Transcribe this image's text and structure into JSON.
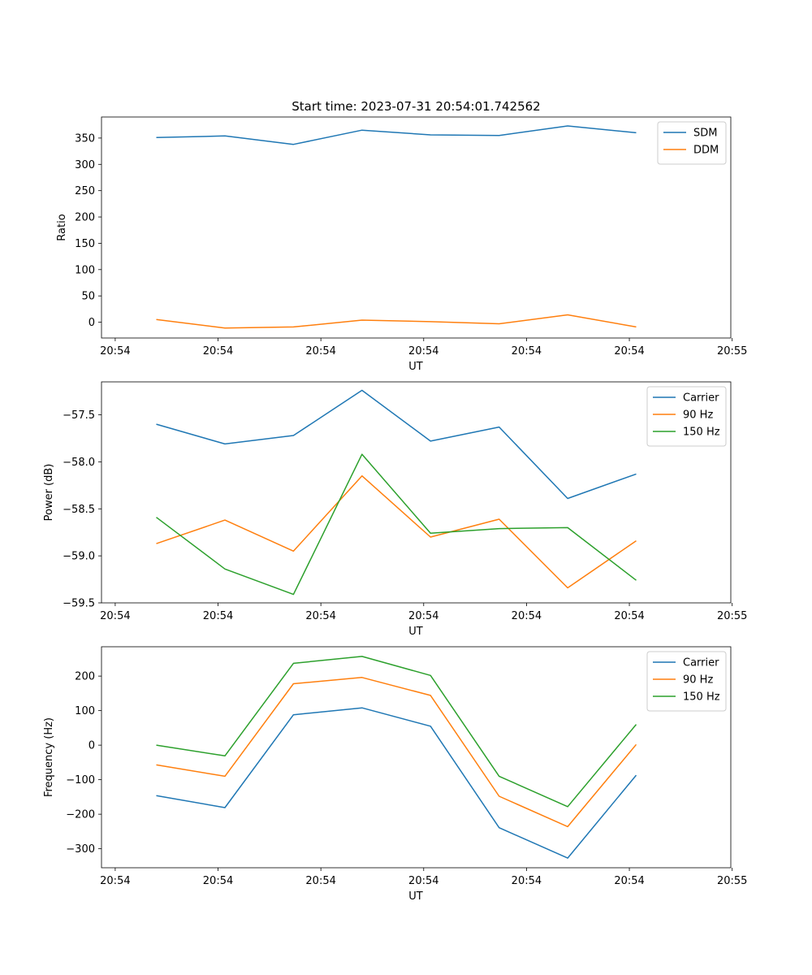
{
  "figure": {
    "title": "Start time: 2023-07-31 20:54:01.742562"
  },
  "chart_data": [
    {
      "type": "line",
      "title": "Start time: 2023-07-31 20:54:01.742562",
      "xlabel": "UT",
      "ylabel": "Ratio",
      "x": [
        1,
        2,
        3,
        4,
        5,
        6,
        7,
        8
      ],
      "xlim": [
        0.2,
        9.38
      ],
      "xticks": [
        0.4,
        1.9,
        3.4,
        4.9,
        6.4,
        7.9,
        9.4
      ],
      "xtick_labels": [
        "20:54",
        "20:54",
        "20:54",
        "20:54",
        "20:54",
        "20:54",
        "20:55"
      ],
      "ylim": [
        -30,
        390
      ],
      "yticks": [
        0,
        50,
        100,
        150,
        200,
        250,
        300,
        350
      ],
      "ytick_labels": [
        "0",
        "50",
        "100",
        "150",
        "200",
        "250",
        "300",
        "350"
      ],
      "legend": "top-right",
      "series": [
        {
          "name": "SDM",
          "color": "#1f77b4",
          "values": [
            351,
            354,
            338,
            365,
            356,
            355,
            373,
            360
          ]
        },
        {
          "name": "DDM",
          "color": "#ff7f0e",
          "values": [
            5,
            -11,
            -9,
            4,
            1,
            -3,
            14,
            -9
          ]
        }
      ]
    },
    {
      "type": "line",
      "title": "",
      "xlabel": "UT",
      "ylabel": "Power (dB)",
      "x": [
        1,
        2,
        3,
        4,
        5,
        6,
        7,
        8
      ],
      "xlim": [
        0.2,
        9.38
      ],
      "xticks": [
        0.4,
        1.9,
        3.4,
        4.9,
        6.4,
        7.9,
        9.4
      ],
      "xtick_labels": [
        "20:54",
        "20:54",
        "20:54",
        "20:54",
        "20:54",
        "20:54",
        "20:55"
      ],
      "ylim": [
        -59.5,
        -57.15
      ],
      "yticks": [
        -59.5,
        -59.0,
        -58.5,
        -58.0,
        -57.5
      ],
      "ytick_labels": [
        "−59.5",
        "−59.0",
        "−58.5",
        "−58.0",
        "−57.5"
      ],
      "legend": "top-right",
      "series": [
        {
          "name": "Carrier",
          "color": "#1f77b4",
          "values": [
            -57.6,
            -57.81,
            -57.72,
            -57.24,
            -57.78,
            -57.63,
            -58.39,
            -58.13
          ]
        },
        {
          "name": "90 Hz",
          "color": "#ff7f0e",
          "values": [
            -58.87,
            -58.62,
            -58.95,
            -58.15,
            -58.8,
            -58.61,
            -59.34,
            -58.84
          ]
        },
        {
          "name": "150 Hz",
          "color": "#2ca02c",
          "values": [
            -58.59,
            -59.14,
            -59.41,
            -57.92,
            -58.76,
            -58.71,
            -58.7,
            -59.26
          ]
        }
      ]
    },
    {
      "type": "line",
      "title": "",
      "xlabel": "UT",
      "ylabel": "Frequency (Hz)",
      "x": [
        1,
        2,
        3,
        4,
        5,
        6,
        7,
        8
      ],
      "xlim": [
        0.2,
        9.38
      ],
      "xticks": [
        0.4,
        1.9,
        3.4,
        4.9,
        6.4,
        7.9,
        9.4
      ],
      "xtick_labels": [
        "20:54",
        "20:54",
        "20:54",
        "20:54",
        "20:54",
        "20:54",
        "20:55"
      ],
      "ylim": [
        -355,
        285
      ],
      "yticks": [
        -300,
        -200,
        -100,
        0,
        100,
        200
      ],
      "ytick_labels": [
        "−300",
        "−200",
        "−100",
        "0",
        "100",
        "200"
      ],
      "legend": "top-right",
      "series": [
        {
          "name": "Carrier",
          "color": "#1f77b4",
          "values": [
            -146,
            -181,
            88,
            108,
            55,
            -239,
            -327,
            -87
          ]
        },
        {
          "name": "90 Hz",
          "color": "#ff7f0e",
          "values": [
            -57,
            -90,
            178,
            196,
            144,
            -148,
            -236,
            2
          ]
        },
        {
          "name": "150 Hz",
          "color": "#2ca02c",
          "values": [
            0,
            -31,
            237,
            257,
            202,
            -90,
            -178,
            60
          ]
        }
      ]
    }
  ]
}
